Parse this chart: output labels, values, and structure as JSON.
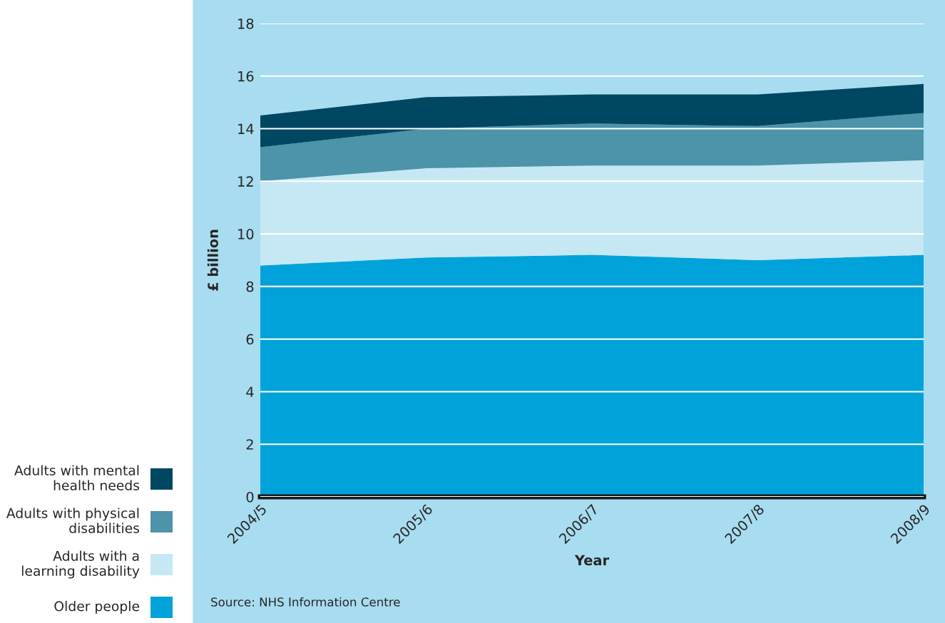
{
  "chart_data": {
    "type": "area",
    "stacked": true,
    "xlabel": "Year",
    "ylabel": "£ billion",
    "categories": [
      "2004/5",
      "2005/6",
      "2006/7",
      "2007/8",
      "2008/9"
    ],
    "series": [
      {
        "name": "Older people",
        "color": "#00a3d9",
        "values": [
          8.8,
          9.1,
          9.2,
          9.0,
          9.2
        ]
      },
      {
        "name": "Adults with a learning disability",
        "color": "#c5e8f4",
        "values": [
          3.2,
          3.4,
          3.4,
          3.6,
          3.6
        ]
      },
      {
        "name": "Adults with physical disabilities",
        "color": "#4d93a9",
        "values": [
          1.3,
          1.5,
          1.6,
          1.5,
          1.8
        ]
      },
      {
        "name": "Adults with mental health needs",
        "color": "#004761",
        "values": [
          1.2,
          1.2,
          1.1,
          1.2,
          1.1
        ]
      }
    ],
    "ylim": [
      0,
      18
    ],
    "yticks": [
      0,
      2,
      4,
      6,
      8,
      10,
      12,
      14,
      16,
      18
    ],
    "grid": "y",
    "legend": "bottom left",
    "annotations": [
      "Source: NHS Information Centre"
    ]
  }
}
